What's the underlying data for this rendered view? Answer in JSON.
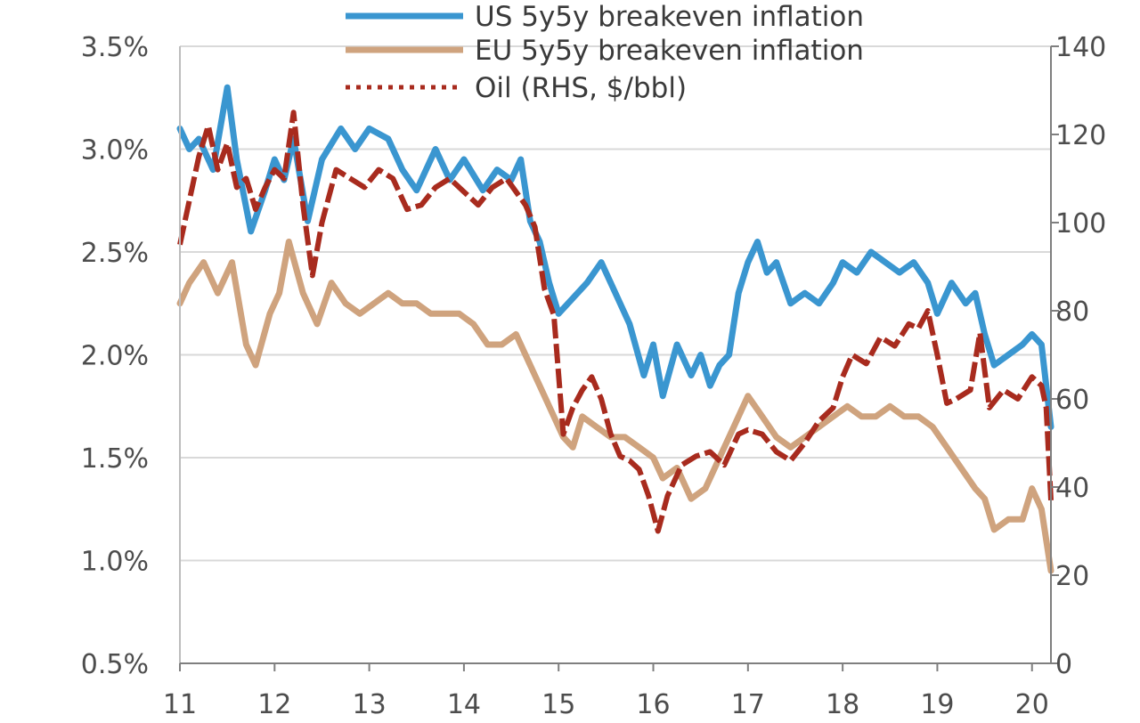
{
  "chart_data": {
    "type": "line",
    "title": "",
    "xlabel": "",
    "ylabel": "",
    "y2label": "",
    "x_tick_labels": [
      "11",
      "12",
      "13",
      "14",
      "15",
      "16",
      "17",
      "18",
      "19",
      "20"
    ],
    "x_ticks": [
      2011,
      2012,
      2013,
      2014,
      2015,
      2016,
      2017,
      2018,
      2019,
      2020
    ],
    "xlim": [
      2011,
      2020.2
    ],
    "y_left": {
      "lim": [
        0.5,
        3.5
      ],
      "ticks": [
        0.5,
        1.0,
        1.5,
        2.0,
        2.5,
        3.0,
        3.5
      ],
      "tick_labels": [
        "0.5%",
        "1.0%",
        "1.5%",
        "2.0%",
        "2.5%",
        "3.0%",
        "3.5%"
      ]
    },
    "y_right": {
      "lim": [
        0,
        140
      ],
      "ticks": [
        0,
        20,
        40,
        60,
        80,
        100,
        120,
        140
      ],
      "tick_labels": [
        "0",
        "20",
        "40",
        "60",
        "80",
        "100",
        "120",
        "140"
      ]
    },
    "grid": "horizontal",
    "legend_position": "top-center",
    "series": [
      {
        "name": "US 5y5y breakeven inflation",
        "axis": "left",
        "color": "#3a96d0",
        "style": "solid",
        "x": [
          2011.0,
          2011.1,
          2011.2,
          2011.35,
          2011.5,
          2011.6,
          2011.75,
          2011.9,
          2012.0,
          2012.1,
          2012.2,
          2012.35,
          2012.5,
          2012.7,
          2012.85,
          2013.0,
          2013.2,
          2013.35,
          2013.5,
          2013.7,
          2013.85,
          2014.0,
          2014.2,
          2014.35,
          2014.5,
          2014.6,
          2014.7,
          2014.8,
          2014.9,
          2015.0,
          2015.1,
          2015.3,
          2015.45,
          2015.6,
          2015.75,
          2015.9,
          2016.0,
          2016.1,
          2016.25,
          2016.4,
          2016.5,
          2016.6,
          2016.7,
          2016.8,
          2016.9,
          2017.0,
          2017.1,
          2017.2,
          2017.3,
          2017.45,
          2017.6,
          2017.75,
          2017.9,
          2018.0,
          2018.15,
          2018.3,
          2018.45,
          2018.6,
          2018.75,
          2018.9,
          2019.0,
          2019.15,
          2019.3,
          2019.4,
          2019.5,
          2019.6,
          2019.75,
          2019.9,
          2020.0,
          2020.1,
          2020.2
        ],
        "values": [
          3.1,
          3.0,
          3.05,
          2.9,
          3.3,
          2.95,
          2.6,
          2.8,
          2.95,
          2.85,
          3.05,
          2.65,
          2.95,
          3.1,
          3.0,
          3.1,
          3.05,
          2.9,
          2.8,
          3.0,
          2.85,
          2.95,
          2.8,
          2.9,
          2.85,
          2.95,
          2.65,
          2.55,
          2.35,
          2.2,
          2.25,
          2.35,
          2.45,
          2.3,
          2.15,
          1.9,
          2.05,
          1.8,
          2.05,
          1.9,
          2.0,
          1.85,
          1.95,
          2.0,
          2.3,
          2.45,
          2.55,
          2.4,
          2.45,
          2.25,
          2.3,
          2.25,
          2.35,
          2.45,
          2.4,
          2.5,
          2.45,
          2.4,
          2.45,
          2.35,
          2.2,
          2.35,
          2.25,
          2.3,
          2.1,
          1.95,
          2.0,
          2.05,
          2.1,
          2.05,
          1.65
        ]
      },
      {
        "name": "EU 5y5y breakeven inflation",
        "axis": "left",
        "color": "#cfa37e",
        "style": "solid",
        "x": [
          2011.0,
          2011.1,
          2011.25,
          2011.4,
          2011.55,
          2011.7,
          2011.8,
          2011.95,
          2012.05,
          2012.15,
          2012.3,
          2012.45,
          2012.6,
          2012.75,
          2012.9,
          2013.05,
          2013.2,
          2013.35,
          2013.5,
          2013.65,
          2013.8,
          2013.95,
          2014.1,
          2014.25,
          2014.4,
          2014.55,
          2014.65,
          2014.75,
          2014.85,
          2014.95,
          2015.05,
          2015.15,
          2015.25,
          2015.4,
          2015.55,
          2015.7,
          2015.85,
          2016.0,
          2016.1,
          2016.25,
          2016.4,
          2016.55,
          2016.7,
          2016.85,
          2017.0,
          2017.15,
          2017.3,
          2017.45,
          2017.6,
          2017.75,
          2017.9,
          2018.05,
          2018.2,
          2018.35,
          2018.5,
          2018.65,
          2018.8,
          2018.95,
          2019.1,
          2019.25,
          2019.4,
          2019.5,
          2019.6,
          2019.75,
          2019.9,
          2020.0,
          2020.1,
          2020.2
        ],
        "values": [
          2.25,
          2.35,
          2.45,
          2.3,
          2.45,
          2.05,
          1.95,
          2.2,
          2.3,
          2.55,
          2.3,
          2.15,
          2.35,
          2.25,
          2.2,
          2.25,
          2.3,
          2.25,
          2.25,
          2.2,
          2.2,
          2.2,
          2.15,
          2.05,
          2.05,
          2.1,
          2.0,
          1.9,
          1.8,
          1.7,
          1.6,
          1.55,
          1.7,
          1.65,
          1.6,
          1.6,
          1.55,
          1.5,
          1.4,
          1.45,
          1.3,
          1.35,
          1.5,
          1.65,
          1.8,
          1.7,
          1.6,
          1.55,
          1.6,
          1.65,
          1.7,
          1.75,
          1.7,
          1.7,
          1.75,
          1.7,
          1.7,
          1.65,
          1.55,
          1.45,
          1.35,
          1.3,
          1.15,
          1.2,
          1.2,
          1.35,
          1.25,
          0.95
        ]
      },
      {
        "name": "Oil (RHS, $/bbl)",
        "axis": "right",
        "color": "#a82b1e",
        "style": "dashed",
        "x": [
          2011.0,
          2011.1,
          2011.2,
          2011.3,
          2011.4,
          2011.5,
          2011.6,
          2011.7,
          2011.8,
          2011.9,
          2012.0,
          2012.1,
          2012.2,
          2012.3,
          2012.4,
          2012.5,
          2012.65,
          2012.8,
          2012.95,
          2013.1,
          2013.25,
          2013.4,
          2013.55,
          2013.7,
          2013.85,
          2014.0,
          2014.15,
          2014.3,
          2014.45,
          2014.55,
          2014.65,
          2014.75,
          2014.85,
          2014.95,
          2015.05,
          2015.15,
          2015.25,
          2015.35,
          2015.45,
          2015.55,
          2015.65,
          2015.75,
          2015.85,
          2015.95,
          2016.05,
          2016.15,
          2016.3,
          2016.45,
          2016.6,
          2016.75,
          2016.9,
          2017.0,
          2017.15,
          2017.3,
          2017.45,
          2017.6,
          2017.75,
          2017.9,
          2018.0,
          2018.1,
          2018.25,
          2018.4,
          2018.55,
          2018.7,
          2018.8,
          2018.9,
          2019.0,
          2019.1,
          2019.2,
          2019.35,
          2019.45,
          2019.55,
          2019.7,
          2019.85,
          2020.0,
          2020.1,
          2020.15,
          2020.2
        ],
        "values": [
          95,
          105,
          115,
          122,
          112,
          118,
          108,
          110,
          103,
          108,
          112,
          110,
          125,
          104,
          88,
          100,
          112,
          110,
          108,
          112,
          110,
          103,
          104,
          108,
          110,
          107,
          104,
          108,
          110,
          107,
          104,
          99,
          85,
          79,
          52,
          58,
          62,
          65,
          60,
          52,
          47,
          46,
          44,
          38,
          30,
          38,
          45,
          47,
          48,
          45,
          52,
          53,
          52,
          48,
          46,
          50,
          55,
          58,
          65,
          70,
          68,
          74,
          72,
          77,
          76,
          80,
          70,
          59,
          60,
          62,
          75,
          58,
          62,
          60,
          65,
          63,
          58,
          37
        ]
      }
    ]
  }
}
